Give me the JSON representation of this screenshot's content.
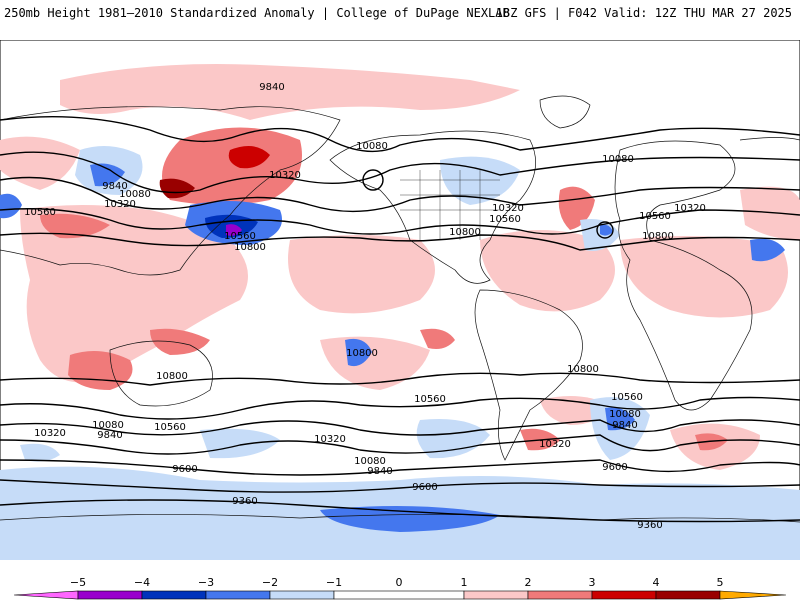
{
  "header": {
    "left": "250mb Height 1981–2010 Standardized Anomaly | College of DuPage NEXLAB",
    "right": "18Z GFS | F042 Valid: 12Z THU MAR 27 2025"
  },
  "colors": {
    "anomaly": {
      "lt_-5": "#ff66ff",
      "-5_-4": "#9900cc",
      "-4_-3": "#0033bb",
      "-3_-2": "#4477ee",
      "-2_-1": "#c6dcf8",
      "-1_1": "#ffffff",
      "1_2": "#fbc8c8",
      "2_3": "#f07a7a",
      "3_4": "#cc0000",
      "4_5": "#990000",
      "gt_5": "#ffaa00"
    },
    "contour": "#000000",
    "border": "#111111"
  },
  "contours": [
    {
      "label": "9840"
    },
    {
      "label": "10080"
    },
    {
      "label": "10320"
    },
    {
      "label": "10560"
    },
    {
      "label": "10800"
    },
    {
      "label": "10080"
    },
    {
      "label": "10320"
    },
    {
      "label": "10560"
    },
    {
      "label": "10800"
    },
    {
      "label": "9840"
    },
    {
      "label": "10080"
    },
    {
      "label": "10320"
    },
    {
      "label": "10560"
    },
    {
      "label": "10800"
    },
    {
      "label": "10320"
    },
    {
      "label": "10560"
    },
    {
      "label": "10800"
    },
    {
      "label": "10560"
    },
    {
      "label": "10800"
    },
    {
      "label": "10800"
    },
    {
      "label": "10320"
    },
    {
      "label": "10080"
    },
    {
      "label": "9840"
    },
    {
      "label": "10560"
    },
    {
      "label": "10320"
    },
    {
      "label": "10080"
    },
    {
      "label": "9840"
    },
    {
      "label": "9600"
    },
    {
      "label": "9600"
    },
    {
      "label": "9360"
    },
    {
      "label": "10560"
    },
    {
      "label": "10080"
    },
    {
      "label": "9840"
    },
    {
      "label": "10320"
    },
    {
      "label": "9600"
    },
    {
      "label": "9360"
    }
  ],
  "colorbar": {
    "ticks": [
      "−5",
      "−4",
      "−3",
      "−2",
      "−1",
      "0",
      "1",
      "2",
      "3",
      "4",
      "5"
    ]
  }
}
